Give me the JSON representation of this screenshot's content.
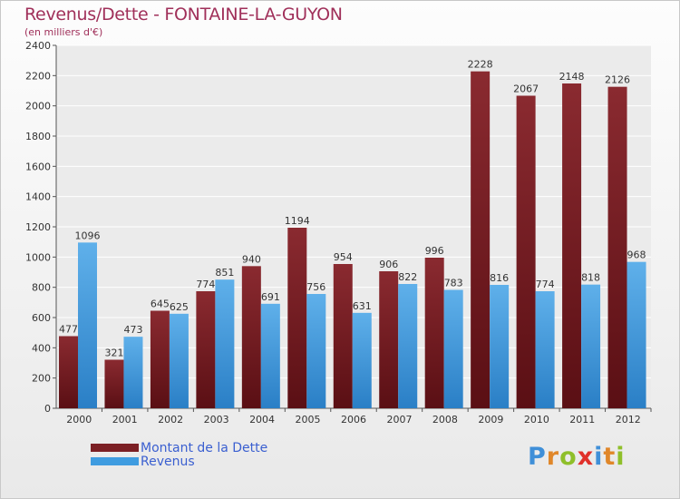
{
  "title": "Revenus/Dette - FONTAINE-LA-GUYON",
  "subtitle": "(en milliers d'€)",
  "colors": {
    "dette": "#7b1f24",
    "revenus": "#3f9ce0",
    "title": "#a0305a"
  },
  "legend": {
    "dette_label": "Montant de la Dette",
    "revenus_label": "Revenus"
  },
  "logo": {
    "text": "Proxiti"
  },
  "chart_data": {
    "type": "bar",
    "categories": [
      "2000",
      "2001",
      "2002",
      "2003",
      "2004",
      "2005",
      "2006",
      "2007",
      "2008",
      "2009",
      "2010",
      "2011",
      "2012"
    ],
    "series": [
      {
        "name": "Montant de la Dette",
        "values": [
          477,
          321,
          645,
          774,
          940,
          1194,
          954,
          906,
          996,
          2228,
          2067,
          2148,
          2126
        ]
      },
      {
        "name": "Revenus",
        "values": [
          1096,
          473,
          625,
          851,
          691,
          756,
          631,
          822,
          783,
          816,
          774,
          818,
          968
        ]
      }
    ],
    "ylim": [
      0,
      2400
    ],
    "yticks": [
      0,
      200,
      400,
      600,
      800,
      1000,
      1200,
      1400,
      1600,
      1800,
      2000,
      2200,
      2400
    ],
    "grid": true,
    "legend_position": "bottom-left"
  }
}
